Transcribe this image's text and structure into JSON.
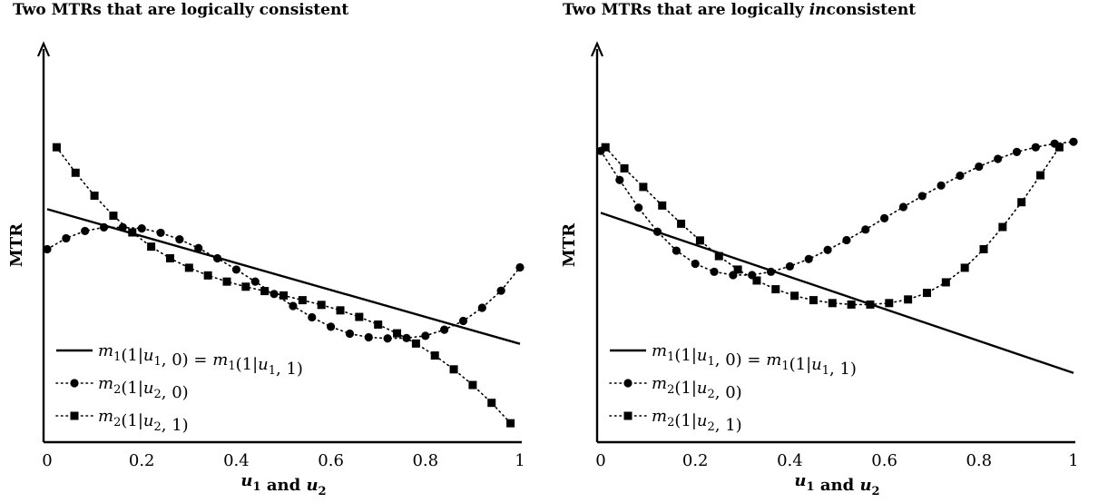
{
  "chart_data": [
    {
      "type": "line",
      "title": "Two MTRs that are logically consistent",
      "title_parts": [
        {
          "text": "Two MTRs that are logically consistent",
          "italic": false
        }
      ],
      "xlabel": "u1 and u2",
      "ylabel": "MTR",
      "xlim": [
        0,
        1
      ],
      "ylim": [
        0,
        1
      ],
      "xticks": [
        0,
        0.2,
        0.4,
        0.6,
        0.8,
        1
      ],
      "xtick_labels": [
        "0",
        "0.2",
        "0.4",
        "0.6",
        "0.8",
        "1"
      ],
      "grid": false,
      "legend_position": "bottom-left",
      "series": [
        {
          "name": "m1(1|u1, 0) = m1(1|u1, 1)",
          "style": "solid",
          "marker": "none",
          "x": [
            0,
            1
          ],
          "y": [
            0.64,
            0.27
          ]
        },
        {
          "name": "m2(1|u2, 0)",
          "style": "dotted",
          "marker": "circle",
          "x": [
            0,
            0.04,
            0.08,
            0.12,
            0.16,
            0.2,
            0.24,
            0.28,
            0.32,
            0.36,
            0.4,
            0.44,
            0.48,
            0.52,
            0.56,
            0.6,
            0.64,
            0.68,
            0.72,
            0.76,
            0.8,
            0.84,
            0.88,
            0.92,
            0.96,
            1
          ],
          "y": [
            0.53,
            0.56,
            0.58,
            0.59,
            0.59,
            0.587,
            0.575,
            0.557,
            0.533,
            0.505,
            0.474,
            0.441,
            0.407,
            0.374,
            0.343,
            0.317,
            0.298,
            0.288,
            0.285,
            0.286,
            0.292,
            0.309,
            0.333,
            0.369,
            0.416,
            0.48
          ]
        },
        {
          "name": "m2(1|u2, 1)",
          "style": "dotted",
          "marker": "square",
          "x": [
            0.02,
            0.06,
            0.1,
            0.14,
            0.18,
            0.22,
            0.26,
            0.3,
            0.34,
            0.38,
            0.42,
            0.46,
            0.5,
            0.54,
            0.58,
            0.62,
            0.66,
            0.7,
            0.74,
            0.78,
            0.82,
            0.86,
            0.9,
            0.94,
            0.98
          ],
          "y": [
            0.81,
            0.74,
            0.677,
            0.622,
            0.576,
            0.537,
            0.505,
            0.479,
            0.458,
            0.441,
            0.427,
            0.415,
            0.403,
            0.39,
            0.377,
            0.362,
            0.344,
            0.323,
            0.299,
            0.271,
            0.238,
            0.2,
            0.157,
            0.108,
            0.052
          ]
        }
      ]
    },
    {
      "type": "line",
      "title": "Two MTRs that are logically inconsistent",
      "title_parts": [
        {
          "text": "Two MTRs that are logically ",
          "italic": false
        },
        {
          "text": "in",
          "italic": true
        },
        {
          "text": "consistent",
          "italic": false
        }
      ],
      "xlabel": "u1 and u2",
      "ylabel": "MTR",
      "xlim": [
        0,
        1
      ],
      "ylim": [
        0,
        1
      ],
      "xticks": [
        0,
        0.2,
        0.4,
        0.6,
        0.8,
        1
      ],
      "xtick_labels": [
        "0",
        "0.2",
        "0.4",
        "0.6",
        "0.8",
        "1"
      ],
      "grid": false,
      "legend_position": "bottom-left",
      "series": [
        {
          "name": "m1(1|u1, 0) = m1(1|u1, 1)",
          "style": "solid",
          "marker": "none",
          "x": [
            0,
            1
          ],
          "y": [
            0.63,
            0.19
          ]
        },
        {
          "name": "m2(1|u2, 0)",
          "style": "dotted",
          "marker": "circle",
          "x": [
            0,
            0.04,
            0.08,
            0.12,
            0.16,
            0.2,
            0.24,
            0.28,
            0.32,
            0.36,
            0.4,
            0.44,
            0.48,
            0.52,
            0.56,
            0.6,
            0.64,
            0.68,
            0.72,
            0.76,
            0.8,
            0.84,
            0.88,
            0.92,
            0.96,
            1
          ],
          "y": [
            0.8,
            0.72,
            0.644,
            0.578,
            0.526,
            0.49,
            0.468,
            0.459,
            0.459,
            0.468,
            0.483,
            0.503,
            0.528,
            0.555,
            0.584,
            0.615,
            0.646,
            0.676,
            0.705,
            0.732,
            0.757,
            0.778,
            0.797,
            0.81,
            0.82,
            0.825
          ]
        },
        {
          "name": "m2(1|u2, 1)",
          "style": "dotted",
          "marker": "square",
          "x": [
            0.01,
            0.05,
            0.09,
            0.13,
            0.17,
            0.21,
            0.25,
            0.29,
            0.33,
            0.37,
            0.41,
            0.45,
            0.49,
            0.53,
            0.57,
            0.61,
            0.65,
            0.69,
            0.73,
            0.77,
            0.81,
            0.85,
            0.89,
            0.93,
            0.97
          ],
          "y": [
            0.81,
            0.752,
            0.701,
            0.65,
            0.6,
            0.554,
            0.511,
            0.474,
            0.444,
            0.42,
            0.402,
            0.39,
            0.382,
            0.378,
            0.378,
            0.382,
            0.392,
            0.41,
            0.439,
            0.479,
            0.53,
            0.591,
            0.659,
            0.733,
            0.81
          ]
        }
      ]
    }
  ]
}
